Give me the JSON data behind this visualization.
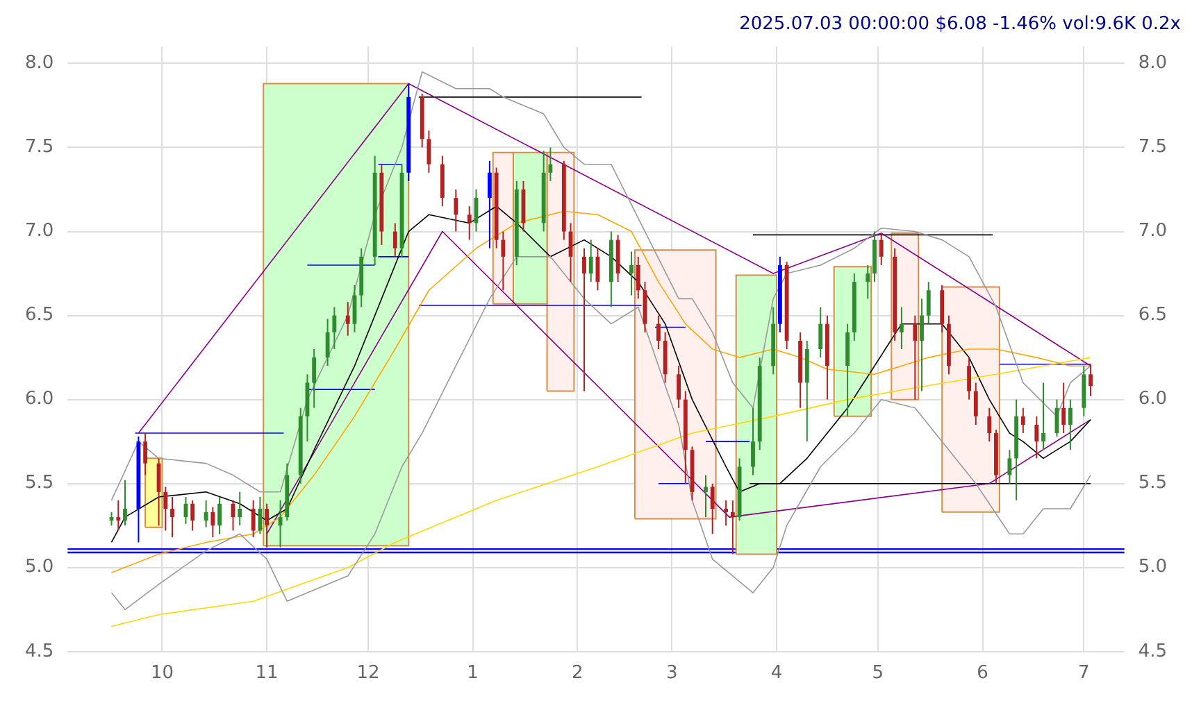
{
  "chart_data": {
    "type": "candlestick",
    "title": "2025.07.03 00:00:00 $6.08 -1.46% vol:9.6K 0.2x",
    "grid": true,
    "xlim": [
      "2024-09-03",
      "2025-07-13"
    ],
    "xticks": [
      {
        "value": "2024-10-01",
        "label": "10"
      },
      {
        "value": "2024-11-01",
        "label": "11"
      },
      {
        "value": "2024-12-01",
        "label": "12"
      },
      {
        "value": "2025-01-01",
        "label": "1"
      },
      {
        "value": "2025-02-01",
        "label": "2"
      },
      {
        "value": "2025-03-01",
        "label": "3"
      },
      {
        "value": "2025-04-01",
        "label": "4"
      },
      {
        "value": "2025-05-01",
        "label": "5"
      },
      {
        "value": "2025-06-01",
        "label": "6"
      },
      {
        "value": "2025-07-01",
        "label": "7"
      }
    ],
    "ylim": [
      4.5,
      8.1
    ],
    "yticks": [
      {
        "value": 4.5,
        "label": "4.5"
      },
      {
        "value": 5,
        "label": "5.0"
      },
      {
        "value": 5.5,
        "label": "5.5"
      },
      {
        "value": 6,
        "label": "6.0"
      },
      {
        "value": 6.5,
        "label": "6.5"
      },
      {
        "value": 7,
        "label": "7.0"
      },
      {
        "value": 7.5,
        "label": "7.5"
      },
      {
        "value": 8,
        "label": "8.0"
      }
    ],
    "y2lim": [
      4.5,
      8.1
    ],
    "y2ticks": [
      {
        "value": 4.5,
        "label": "4.5"
      },
      {
        "value": 5,
        "label": "5.0"
      },
      {
        "value": 5.5,
        "label": "5.5"
      },
      {
        "value": 6,
        "label": "6.0"
      },
      {
        "value": 6.5,
        "label": "6.5"
      },
      {
        "value": 7,
        "label": "7.0"
      },
      {
        "value": 7.5,
        "label": "7.5"
      },
      {
        "value": 8,
        "label": "8.0"
      }
    ],
    "ref_lines": [
      {
        "axis": "y",
        "value": 5.11,
        "color": "#0000ff"
      },
      {
        "axis": "y",
        "value": 5.09,
        "color": "#0000ff"
      }
    ],
    "series": [
      {
        "type": "area",
        "color": "#ffff99",
        "x": [
          "2024-09-26",
          "2024-09-26",
          "2024-10-01",
          "2024-10-01",
          "2024-09-26"
        ],
        "values": [
          5.24,
          5.65,
          5.65,
          5.24,
          5.24
        ]
      },
      {
        "type": "area",
        "color": "#ccffcc",
        "x": [
          "2024-10-31",
          "2024-10-31",
          "2024-12-13",
          "2024-12-13",
          "2024-10-31"
        ],
        "values": [
          5.13,
          7.88,
          7.88,
          5.13,
          5.13
        ]
      },
      {
        "type": "area",
        "color": "#fff0ee",
        "x": [
          "2025-01-07",
          "2025-01-07",
          "2025-01-13",
          "2025-01-13",
          "2025-01-07"
        ],
        "values": [
          6.57,
          7.47,
          7.47,
          6.57,
          6.57
        ]
      },
      {
        "type": "area",
        "color": "#ccffcc",
        "x": [
          "2025-01-13",
          "2025-01-13",
          "2025-01-23",
          "2025-01-23",
          "2025-01-13"
        ],
        "values": [
          6.57,
          7.47,
          7.47,
          6.57,
          6.57
        ]
      },
      {
        "type": "area",
        "color": "#fff0ee",
        "x": [
          "2025-01-23",
          "2025-01-23",
          "2025-01-31",
          "2025-01-31",
          "2025-01-23"
        ],
        "values": [
          6.05,
          7.47,
          7.47,
          6.05,
          6.05
        ]
      },
      {
        "type": "area",
        "color": "#fff0ee",
        "x": [
          "2025-02-18",
          "2025-02-18",
          "2025-03-14",
          "2025-03-14",
          "2025-02-18"
        ],
        "values": [
          5.29,
          6.89,
          6.89,
          5.29,
          5.29
        ]
      },
      {
        "type": "area",
        "color": "#ccffcc",
        "x": [
          "2025-03-20",
          "2025-03-20",
          "2025-04-01",
          "2025-04-01",
          "2025-03-20"
        ],
        "values": [
          5.08,
          6.74,
          6.74,
          5.08,
          5.08
        ]
      },
      {
        "type": "area",
        "color": "#ccffcc",
        "x": [
          "2025-04-18",
          "2025-04-18",
          "2025-04-29",
          "2025-04-29",
          "2025-04-18"
        ],
        "values": [
          5.9,
          6.79,
          6.79,
          5.9,
          5.9
        ]
      },
      {
        "type": "area",
        "color": "#fff0ee",
        "x": [
          "2025-05-05",
          "2025-05-05",
          "2025-05-13",
          "2025-05-13",
          "2025-05-05"
        ],
        "values": [
          6.0,
          6.99,
          6.99,
          6.0,
          6.0
        ]
      },
      {
        "type": "area",
        "color": "#fff0ee",
        "x": [
          "2025-05-20",
          "2025-05-20",
          "2025-06-06",
          "2025-06-06",
          "2025-05-20"
        ],
        "values": [
          5.33,
          6.67,
          6.67,
          5.33,
          5.33
        ]
      },
      {
        "type": "line",
        "color": "#999999",
        "x": [
          "2024-09-16",
          "2024-09-24",
          "2024-09-30",
          "2024-10-14",
          "2024-10-22",
          "2024-10-30",
          "2024-11-05",
          "2024-11-13",
          "2024-11-25",
          "2024-12-03",
          "2024-12-11",
          "2024-12-17",
          "2024-12-27",
          "2025-01-06",
          "2025-01-10",
          "2025-01-22",
          "2025-01-28",
          "2025-02-03",
          "2025-02-11",
          "2025-02-21",
          "2025-03-03",
          "2025-03-07",
          "2025-03-13",
          "2025-03-19",
          "2025-03-25",
          "2025-03-31",
          "2025-04-04",
          "2025-04-14",
          "2025-04-24",
          "2025-05-02",
          "2025-05-12",
          "2025-05-20",
          "2025-05-28",
          "2025-06-05",
          "2025-06-13",
          "2025-06-23",
          "2025-06-27",
          "2025-07-03"
        ],
        "values": [
          5.4,
          5.75,
          5.65,
          5.62,
          5.55,
          5.45,
          5.45,
          6.0,
          6.5,
          7.1,
          7.5,
          7.95,
          7.85,
          7.85,
          7.8,
          7.7,
          7.5,
          7.4,
          7.4,
          7.0,
          6.6,
          6.6,
          6.4,
          6.1,
          5.95,
          6.6,
          6.75,
          6.8,
          6.9,
          7.02,
          7.0,
          6.95,
          6.85,
          6.55,
          6.1,
          5.9,
          6.1,
          6.2
        ]
      },
      {
        "type": "line",
        "color": "#999999",
        "x": [
          "2024-09-16",
          "2024-09-20",
          "2024-09-30",
          "2024-10-14",
          "2024-10-24",
          "2024-11-01",
          "2024-11-07",
          "2024-11-13",
          "2024-11-25",
          "2024-12-03",
          "2024-12-11",
          "2024-12-17",
          "2024-12-27",
          "2025-01-06",
          "2025-01-14",
          "2025-01-24",
          "2025-02-03",
          "2025-02-11",
          "2025-02-19",
          "2025-02-25",
          "2025-03-03",
          "2025-03-07",
          "2025-03-13",
          "2025-03-19",
          "2025-03-25",
          "2025-03-31",
          "2025-04-04",
          "2025-04-14",
          "2025-04-24",
          "2025-05-02",
          "2025-05-12",
          "2025-05-20",
          "2025-05-30",
          "2025-06-09",
          "2025-06-13",
          "2025-06-19",
          "2025-06-27",
          "2025-07-03"
        ],
        "values": [
          4.85,
          4.75,
          4.9,
          5.1,
          5.2,
          5.05,
          4.8,
          4.85,
          4.95,
          5.2,
          5.6,
          5.8,
          6.2,
          6.6,
          6.85,
          6.85,
          6.6,
          6.45,
          6.55,
          6.2,
          5.85,
          5.4,
          5.05,
          4.95,
          4.85,
          5.0,
          5.25,
          5.6,
          5.8,
          6.0,
          5.95,
          5.75,
          5.5,
          5.2,
          5.2,
          5.35,
          5.35,
          5.55
        ]
      },
      {
        "type": "line",
        "color": "#ffd700",
        "x": [
          "2024-09-16",
          "2024-09-30",
          "2024-10-28",
          "2024-11-25",
          "2024-12-09",
          "2025-01-08",
          "2025-02-07",
          "2025-03-07",
          "2025-03-31",
          "2025-04-22",
          "2025-05-12",
          "2025-06-05",
          "2025-07-03"
        ],
        "values": [
          4.65,
          4.72,
          4.8,
          5.0,
          5.15,
          5.4,
          5.6,
          5.8,
          5.9,
          6.0,
          6.07,
          6.15,
          6.25
        ]
      },
      {
        "type": "line",
        "color": "#ffa500",
        "x": [
          "2024-09-16",
          "2024-09-30",
          "2024-10-14",
          "2024-10-28",
          "2024-11-05",
          "2024-11-15",
          "2024-11-27",
          "2024-12-09",
          "2024-12-19",
          "2025-01-02",
          "2025-01-14",
          "2025-01-28",
          "2025-02-07",
          "2025-02-17",
          "2025-02-25",
          "2025-03-05",
          "2025-03-13",
          "2025-03-21",
          "2025-03-31",
          "2025-04-08",
          "2025-04-16",
          "2025-04-30",
          "2025-05-08",
          "2025-05-16",
          "2025-05-28",
          "2025-06-05",
          "2025-06-17",
          "2025-06-27",
          "2025-07-03"
        ],
        "values": [
          4.97,
          5.08,
          5.15,
          5.2,
          5.3,
          5.55,
          5.9,
          6.3,
          6.65,
          6.9,
          7.05,
          7.12,
          7.1,
          7.0,
          6.7,
          6.45,
          6.3,
          6.25,
          6.3,
          6.25,
          6.18,
          6.15,
          6.2,
          6.25,
          6.3,
          6.3,
          6.25,
          6.2,
          6.2
        ]
      },
      {
        "type": "line",
        "color": "#000000",
        "x": [
          "2024-09-16",
          "2024-09-20",
          "2024-09-30",
          "2024-10-14",
          "2024-10-24",
          "2024-11-01",
          "2024-11-07",
          "2024-11-15",
          "2024-11-27",
          "2024-12-05",
          "2024-12-13",
          "2024-12-19",
          "2024-12-31",
          "2025-01-08",
          "2025-01-14",
          "2025-01-24",
          "2025-02-03",
          "2025-02-11",
          "2025-02-19",
          "2025-02-27",
          "2025-03-07",
          "2025-03-17",
          "2025-03-21",
          "2025-03-27",
          "2025-04-02",
          "2025-04-10",
          "2025-04-22",
          "2025-04-30",
          "2025-05-08",
          "2025-05-14",
          "2025-05-20",
          "2025-05-28",
          "2025-06-03",
          "2025-06-09",
          "2025-06-13",
          "2025-06-19",
          "2025-06-27",
          "2025-07-03"
        ],
        "values": [
          5.15,
          5.3,
          5.42,
          5.45,
          5.38,
          5.28,
          5.35,
          5.7,
          6.2,
          6.6,
          7.0,
          7.1,
          7.05,
          7.15,
          7.05,
          6.85,
          6.95,
          6.85,
          6.7,
          6.45,
          6.0,
          5.6,
          5.45,
          5.5,
          5.5,
          5.65,
          5.95,
          6.2,
          6.45,
          6.45,
          6.45,
          6.25,
          6.0,
          5.8,
          5.75,
          5.65,
          5.75,
          5.88
        ]
      },
      {
        "type": "line",
        "color": "#8b008b",
        "x": [
          "2024-09-24",
          "2024-12-13"
        ],
        "values": [
          5.8,
          7.88
        ]
      },
      {
        "type": "line",
        "color": "#8b008b",
        "x": [
          "2024-12-13",
          "2025-03-31",
          "2025-05-02",
          "2025-07-03"
        ],
        "values": [
          7.88,
          6.75,
          6.99,
          6.2
        ]
      },
      {
        "type": "line",
        "color": "#8b008b",
        "x": [
          "2024-11-01",
          "2024-12-23",
          "2025-03-18",
          "2025-06-03",
          "2025-07-03"
        ],
        "values": [
          5.2,
          7.0,
          5.3,
          5.5,
          5.88
        ]
      },
      {
        "type": "line",
        "color": "#000000",
        "x": [
          "2024-12-16",
          "2025-02-20"
        ],
        "values": [
          7.8,
          7.8
        ]
      },
      {
        "type": "line",
        "color": "#000000",
        "x": [
          "2025-03-25",
          "2025-06-04"
        ],
        "values": [
          6.98,
          6.98
        ]
      },
      {
        "type": "line",
        "color": "#000000",
        "x": [
          "2025-03-24",
          "2025-07-03"
        ],
        "values": [
          5.5,
          5.5
        ]
      },
      {
        "type": "line",
        "color": "#0000ff",
        "x": [
          "2024-09-23",
          "2024-11-06"
        ],
        "values": [
          5.8,
          5.8
        ]
      },
      {
        "type": "line",
        "color": "#0000ff",
        "x": [
          "2024-11-13",
          "2024-12-03"
        ],
        "values": [
          6.8,
          6.8
        ]
      },
      {
        "type": "line",
        "color": "#0000ff",
        "x": [
          "2024-11-13",
          "2024-12-03"
        ],
        "values": [
          6.06,
          6.06
        ]
      },
      {
        "type": "line",
        "color": "#0000ff",
        "x": [
          "2024-12-04",
          "2024-12-11"
        ],
        "values": [
          7.4,
          7.4
        ]
      },
      {
        "type": "line",
        "color": "#0000ff",
        "x": [
          "2024-12-04",
          "2024-12-13"
        ],
        "values": [
          6.85,
          6.85
        ]
      },
      {
        "type": "line",
        "color": "#0000ff",
        "x": [
          "2024-12-16",
          "2025-02-20"
        ],
        "values": [
          6.56,
          6.56
        ]
      },
      {
        "type": "line",
        "color": "#0000ff",
        "x": [
          "2025-02-24",
          "2025-03-05"
        ],
        "values": [
          6.43,
          6.43
        ]
      },
      {
        "type": "line",
        "color": "#0000ff",
        "x": [
          "2025-02-25",
          "2025-03-06"
        ],
        "values": [
          5.5,
          5.5
        ]
      },
      {
        "type": "line",
        "color": "#0000ff",
        "x": [
          "2025-03-11",
          "2025-03-24"
        ],
        "values": [
          5.75,
          5.75
        ]
      },
      {
        "type": "line",
        "color": "#0000ff",
        "x": [
          "2025-06-06",
          "2025-07-03"
        ],
        "values": [
          6.21,
          6.21
        ]
      },
      {
        "x": [
          "2024-09-16",
          "2024-09-18",
          "2024-09-20",
          "2024-09-24",
          "2024-09-26",
          "2024-09-30",
          "2024-10-02",
          "2024-10-04",
          "2024-10-08",
          "2024-10-10",
          "2024-10-14",
          "2024-10-16",
          "2024-10-18",
          "2024-10-22",
          "2024-10-24",
          "2024-10-28",
          "2024-10-30",
          "2024-11-01",
          "2024-11-05",
          "2024-11-07",
          "2024-11-11",
          "2024-11-13",
          "2024-11-15",
          "2024-11-19",
          "2024-11-21",
          "2024-11-25",
          "2024-11-27",
          "2024-11-29",
          "2024-12-03",
          "2024-12-05",
          "2024-12-09",
          "2024-12-11",
          "2024-12-13",
          "2024-12-17",
          "2024-12-19",
          "2024-12-23",
          "2024-12-27",
          "2024-12-31",
          "2025-01-02",
          "2025-01-06",
          "2025-01-08",
          "2025-01-10",
          "2025-01-14",
          "2025-01-16",
          "2025-01-22",
          "2025-01-24",
          "2025-01-28",
          "2025-01-30",
          "2025-02-03",
          "2025-02-05",
          "2025-02-07",
          "2025-02-11",
          "2025-02-13",
          "2025-02-17",
          "2025-02-19",
          "2025-02-21",
          "2025-02-25",
          "2025-02-27",
          "2025-03-03",
          "2025-03-05",
          "2025-03-07",
          "2025-03-11",
          "2025-03-13",
          "2025-03-17",
          "2025-03-19",
          "2025-03-21",
          "2025-03-25",
          "2025-03-27",
          "2025-03-31",
          "2025-04-02",
          "2025-04-04",
          "2025-04-08",
          "2025-04-10",
          "2025-04-14",
          "2025-04-16",
          "2025-04-22",
          "2025-04-24",
          "2025-04-28",
          "2025-04-30",
          "2025-05-02",
          "2025-05-06",
          "2025-05-08",
          "2025-05-12",
          "2025-05-14",
          "2025-05-16",
          "2025-05-20",
          "2025-05-22",
          "2025-05-28",
          "2025-05-30",
          "2025-06-03",
          "2025-06-05",
          "2025-06-09",
          "2025-06-11",
          "2025-06-13",
          "2025-06-17",
          "2025-06-19",
          "2025-06-23",
          "2025-06-25",
          "2025-06-27",
          "2025-07-01",
          "2025-07-03"
        ],
        "ohlc": [
          [
            5.28,
            5.33,
            5.25,
            5.3
          ],
          [
            5.3,
            5.4,
            5.22,
            5.28
          ],
          [
            5.28,
            5.52,
            5.25,
            5.35
          ],
          [
            5.35,
            5.78,
            5.15,
            5.75
          ],
          [
            5.75,
            5.8,
            5.55,
            5.62
          ],
          [
            5.62,
            5.65,
            5.25,
            5.45
          ],
          [
            5.45,
            5.48,
            5.22,
            5.35
          ],
          [
            5.35,
            5.42,
            5.18,
            5.3
          ],
          [
            5.3,
            5.42,
            5.26,
            5.38
          ],
          [
            5.38,
            5.4,
            5.22,
            5.28
          ],
          [
            5.28,
            5.4,
            5.24,
            5.33
          ],
          [
            5.33,
            5.36,
            5.18,
            5.25
          ],
          [
            5.25,
            5.42,
            5.2,
            5.38
          ],
          [
            5.38,
            5.4,
            5.22,
            5.3
          ],
          [
            5.3,
            5.45,
            5.25,
            5.35
          ],
          [
            5.35,
            5.4,
            5.18,
            5.22
          ],
          [
            5.22,
            5.42,
            5.2,
            5.35
          ],
          [
            5.35,
            5.38,
            5.12,
            5.25
          ],
          [
            5.25,
            5.4,
            5.12,
            5.3
          ],
          [
            5.3,
            5.62,
            5.28,
            5.55
          ],
          [
            5.55,
            5.95,
            5.5,
            5.9
          ],
          [
            5.9,
            6.15,
            5.75,
            6.1
          ],
          [
            6.1,
            6.3,
            5.95,
            6.25
          ],
          [
            6.25,
            6.48,
            6.2,
            6.4
          ],
          [
            6.4,
            6.55,
            6.3,
            6.5
          ],
          [
            6.5,
            6.58,
            6.38,
            6.45
          ],
          [
            6.45,
            6.68,
            6.4,
            6.62
          ],
          [
            6.62,
            6.9,
            6.55,
            6.85
          ],
          [
            6.85,
            7.45,
            6.8,
            7.35
          ],
          [
            7.35,
            7.4,
            6.92,
            7.0
          ],
          [
            7.0,
            7.05,
            6.85,
            6.9
          ],
          [
            6.9,
            7.4,
            6.85,
            7.35
          ],
          [
            7.35,
            7.88,
            7.3,
            7.8
          ],
          [
            7.8,
            7.82,
            7.5,
            7.55
          ],
          [
            7.55,
            7.6,
            7.35,
            7.4
          ],
          [
            7.4,
            7.45,
            7.15,
            7.2
          ],
          [
            7.2,
            7.25,
            7.0,
            7.1
          ],
          [
            7.1,
            7.15,
            6.95,
            7.05
          ],
          [
            7.05,
            7.25,
            7.0,
            7.2
          ],
          [
            7.2,
            7.42,
            6.9,
            7.35
          ],
          [
            7.35,
            7.38,
            6.9,
            6.95
          ],
          [
            6.95,
            7.0,
            6.65,
            6.85
          ],
          [
            6.85,
            7.3,
            6.8,
            7.25
          ],
          [
            7.25,
            7.3,
            7.0,
            7.05
          ],
          [
            7.05,
            7.48,
            7.0,
            7.35
          ],
          [
            7.35,
            7.5,
            7.3,
            7.4
          ],
          [
            7.4,
            7.42,
            6.95,
            7.0
          ],
          [
            7.0,
            7.05,
            6.7,
            6.85
          ],
          [
            6.85,
            6.9,
            6.05,
            6.75
          ],
          [
            6.75,
            6.95,
            6.7,
            6.85
          ],
          [
            6.85,
            6.9,
            6.65,
            6.7
          ],
          [
            6.7,
            7.0,
            6.55,
            6.95
          ],
          [
            6.95,
            6.98,
            6.7,
            6.75
          ],
          [
            6.75,
            6.88,
            6.62,
            6.8
          ],
          [
            6.8,
            6.85,
            6.6,
            6.65
          ],
          [
            6.65,
            6.7,
            6.4,
            6.45
          ],
          [
            6.45,
            6.5,
            6.3,
            6.35
          ],
          [
            6.35,
            6.4,
            6.1,
            6.15
          ],
          [
            6.15,
            6.2,
            5.95,
            6.0
          ],
          [
            6.0,
            6.05,
            5.5,
            5.7
          ],
          [
            5.7,
            5.72,
            5.4,
            5.45
          ],
          [
            5.45,
            5.55,
            5.3,
            5.48
          ],
          [
            5.48,
            5.5,
            5.2,
            5.35
          ],
          [
            5.35,
            5.4,
            5.25,
            5.33
          ],
          [
            5.33,
            5.4,
            5.08,
            5.3
          ],
          [
            5.3,
            5.65,
            5.28,
            5.6
          ],
          [
            5.6,
            5.95,
            5.55,
            5.75
          ],
          [
            5.75,
            6.25,
            5.7,
            6.2
          ],
          [
            6.2,
            6.55,
            6.15,
            6.45
          ],
          [
            6.45,
            6.85,
            6.4,
            6.8
          ],
          [
            6.8,
            6.82,
            6.3,
            6.35
          ],
          [
            6.35,
            6.4,
            5.95,
            6.1
          ],
          [
            6.1,
            6.35,
            5.75,
            6.3
          ],
          [
            6.3,
            6.55,
            6.25,
            6.45
          ],
          [
            6.45,
            6.5,
            6.0,
            6.2
          ],
          [
            6.2,
            6.45,
            5.9,
            6.4
          ],
          [
            6.4,
            6.75,
            6.35,
            6.7
          ],
          [
            6.7,
            6.8,
            6.6,
            6.75
          ],
          [
            6.75,
            7.0,
            6.7,
            6.95
          ],
          [
            6.95,
            6.99,
            6.8,
            6.85
          ],
          [
            6.85,
            6.9,
            6.35,
            6.4
          ],
          [
            6.4,
            6.55,
            6.3,
            6.45
          ],
          [
            6.45,
            6.5,
            6.0,
            6.35
          ],
          [
            6.35,
            6.6,
            6.05,
            6.5
          ],
          [
            6.5,
            6.7,
            6.45,
            6.65
          ],
          [
            6.65,
            6.68,
            6.4,
            6.45
          ],
          [
            6.45,
            6.5,
            6.15,
            6.2
          ],
          [
            6.2,
            6.25,
            6.0,
            6.05
          ],
          [
            6.05,
            6.1,
            5.85,
            5.9
          ],
          [
            5.9,
            5.95,
            5.75,
            5.8
          ],
          [
            5.8,
            5.82,
            5.5,
            5.55
          ],
          [
            5.55,
            5.7,
            5.5,
            5.65
          ],
          [
            5.65,
            6.0,
            5.4,
            5.9
          ],
          [
            5.9,
            5.95,
            5.8,
            5.85
          ],
          [
            5.85,
            5.9,
            5.65,
            5.75
          ],
          [
            5.75,
            6.1,
            5.7,
            5.8
          ],
          [
            5.8,
            6.0,
            5.78,
            5.95
          ],
          [
            5.95,
            6.1,
            5.8,
            5.85
          ],
          [
            5.85,
            6.0,
            5.7,
            5.95
          ],
          [
            5.95,
            6.2,
            5.9,
            6.15
          ],
          [
            6.15,
            6.21,
            6.02,
            6.08
          ]
        ],
        "colors": [
          "#2e8b2e",
          "#b22222",
          "#2e8b2e",
          "#0000ff",
          "#b22222",
          "#b22222",
          "#b22222",
          "#b22222",
          "#2e8b2e",
          "#b22222",
          "#2e8b2e",
          "#b22222",
          "#2e8b2e",
          "#b22222",
          "#2e8b2e",
          "#b22222",
          "#2e8b2e",
          "#b22222",
          "#2e8b2e",
          "#2e8b2e",
          "#2e8b2e",
          "#2e8b2e",
          "#2e8b2e",
          "#2e8b2e",
          "#2e8b2e",
          "#b22222",
          "#2e8b2e",
          "#2e8b2e",
          "#2e8b2e",
          "#b22222",
          "#b22222",
          "#2e8b2e",
          "#0000ff",
          "#b22222",
          "#b22222",
          "#b22222",
          "#b22222",
          "#b22222",
          "#2e8b2e",
          "#0000ff",
          "#b22222",
          "#b22222",
          "#2e8b2e",
          "#b22222",
          "#2e8b2e",
          "#2e8b2e",
          "#b22222",
          "#b22222",
          "#b22222",
          "#2e8b2e",
          "#b22222",
          "#2e8b2e",
          "#b22222",
          "#2e8b2e",
          "#b22222",
          "#b22222",
          "#b22222",
          "#b22222",
          "#b22222",
          "#b22222",
          "#b22222",
          "#2e8b2e",
          "#b22222",
          "#b22222",
          "#b22222",
          "#2e8b2e",
          "#2e8b2e",
          "#2e8b2e",
          "#2e8b2e",
          "#0000ff",
          "#b22222",
          "#b22222",
          "#2e8b2e",
          "#2e8b2e",
          "#b22222",
          "#2e8b2e",
          "#2e8b2e",
          "#2e8b2e",
          "#2e8b2e",
          "#b22222",
          "#b22222",
          "#2e8b2e",
          "#b22222",
          "#2e8b2e",
          "#2e8b2e",
          "#b22222",
          "#b22222",
          "#b22222",
          "#b22222",
          "#b22222",
          "#b22222",
          "#2e8b2e",
          "#2e8b2e",
          "#b22222",
          "#b22222",
          "#2e8b2e",
          "#2e8b2e",
          "#b22222",
          "#2e8b2e",
          "#2e8b2e",
          "#b22222"
        ]
      }
    ]
  }
}
